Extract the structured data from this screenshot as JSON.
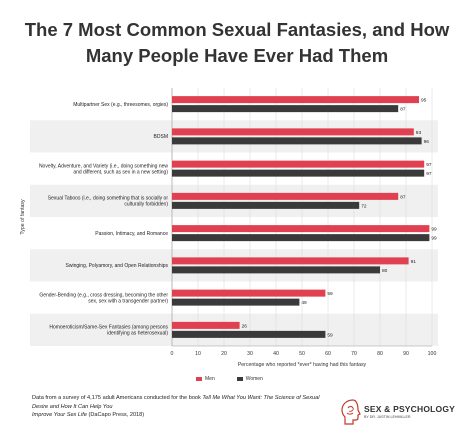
{
  "title_line1": "The 7 Most Common Sexual Fantasies, and How",
  "title_line2": "Many People Have Ever Had Them",
  "chart_data": {
    "type": "bar",
    "orientation": "horizontal",
    "categories": [
      [
        "Multipartner Sex (e.g., threesomes, orgies)"
      ],
      [
        "BDSM"
      ],
      [
        "Novelty, Adventure, and Variety (i.e., doing something new",
        "and different, such as sex in a new setting)"
      ],
      [
        "Sexual Taboos (i.e., doing something that is socially or",
        "culturally forbidden)"
      ],
      [
        "Passion, Intimacy, and Romance"
      ],
      [
        "Swinging, Polyamory, and Open Relationships"
      ],
      [
        "Gender-Bending (e.g., cross dressing, becoming the other",
        "sex, sex with a transgender partner)"
      ],
      [
        "Homoeroticism/Same-Sex Fantasies (among persons",
        "identifying as heterosexual)"
      ]
    ],
    "series": [
      {
        "name": "Men",
        "color": "#e0404f",
        "values": [
          95,
          93,
          97,
          87,
          99,
          91,
          59,
          26
        ]
      },
      {
        "name": "Women",
        "color": "#3a3a3a",
        "values": [
          87,
          96,
          97,
          72,
          99,
          80,
          49,
          59
        ]
      }
    ],
    "xlim": [
      0,
      100
    ],
    "xticks": [
      "0",
      "10",
      "20",
      "30",
      "40",
      "50",
      "60",
      "70",
      "80",
      "90",
      "100"
    ],
    "xlabel": "Percentage who reported *ever* having had this fantasy",
    "ylabel": "Type of fantasy",
    "legend_position": "bottom",
    "band_colors": [
      "#ffffff",
      "#f0f0f0"
    ]
  },
  "footnote": {
    "line1_prefix": "Data from a survey of 4,175 adult Americans conducted for the book ",
    "line1_book": "Tell Me What You Want: The Science of Sexual Desire and How It Can Help You",
    "line2_book": "Improve Your Sex Life",
    "line2_suffix": " (DaCapo Press, 2018)"
  },
  "brand": {
    "name": "SEX & PSYCHOLOGY",
    "sub": "BY DR. JUSTIN LEHMILLER",
    "logo_icon": "head-profile-icon"
  }
}
